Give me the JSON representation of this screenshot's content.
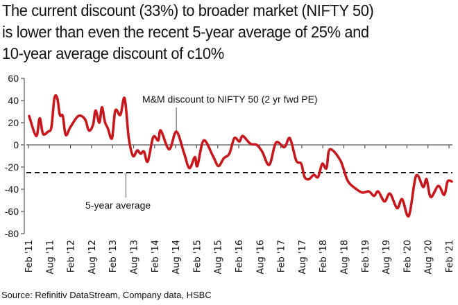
{
  "title_lines": [
    "The current discount (33%) to broader market (NIFTY 50)",
    "is lower than even the recent 5-year average of 25% and",
    "10-year average discount of c10%"
  ],
  "source": "Source: Refinitiv DataStream, Company data, HSBC",
  "colors": {
    "series": "#c8161d",
    "axis": "#555555",
    "text": "#111111"
  },
  "chart_data": {
    "type": "line",
    "title": "The current discount (33%) to broader market (NIFTY 50) is lower than even the recent 5-year average of 25% and 10-year average discount of c10%",
    "xlabel": "",
    "ylabel": "",
    "ylim": [
      -80,
      60
    ],
    "yticks": [
      60,
      40,
      20,
      0,
      -20,
      -40,
      -60,
      -80
    ],
    "ytick_labels": [
      "60",
      "40",
      "20",
      "0",
      "-20",
      "-40",
      "-60",
      "-80"
    ],
    "xtick_labels": [
      "Feb '11",
      "Aug '11",
      "Feb '12",
      "Aug '12",
      "Feb '13",
      "Aug '13",
      "Feb '14",
      "Aug '14",
      "Feb '15",
      "Aug '15",
      "Feb '16",
      "Aug '16",
      "Feb '17",
      "Aug '17",
      "Feb '18",
      "Aug '18",
      "Feb '19",
      "Aug '19",
      "Feb '20",
      "Aug '20",
      "Feb '21"
    ],
    "xlim_years": [
      2011.08,
      2021.2
    ],
    "grid": false,
    "series": [
      {
        "name": "M&M discount to NIFTY 50 (2 yr fwd PE)",
        "x_years": [
          2011.1,
          2011.27,
          2011.35,
          2011.43,
          2011.55,
          2011.63,
          2011.7,
          2011.77,
          2011.83,
          2011.9,
          2011.97,
          2012.08,
          2012.27,
          2012.43,
          2012.52,
          2012.62,
          2012.68,
          2012.77,
          2012.83,
          2012.9,
          2012.97,
          2013.07,
          2013.15,
          2013.27,
          2013.37,
          2013.47,
          2013.57,
          2013.67,
          2013.75,
          2013.83,
          2013.92,
          2014.05,
          2014.17,
          2014.23,
          2014.43,
          2014.6,
          2014.78,
          2014.91,
          2015.04,
          2015.1,
          2015.25,
          2015.47,
          2015.6,
          2015.73,
          2015.86,
          2015.98,
          2016.1,
          2016.18,
          2016.36,
          2016.51,
          2016.64,
          2016.81,
          2016.97,
          2017.17,
          2017.3,
          2017.45,
          2017.57,
          2017.65,
          2017.75,
          2017.87,
          2017.97,
          2018.07,
          2018.17,
          2018.25,
          2018.5,
          2018.67,
          2018.85,
          2019.02,
          2019.18,
          2019.3,
          2019.4,
          2019.55,
          2019.68,
          2019.85,
          2019.97,
          2020.13,
          2020.3,
          2020.47,
          2020.55,
          2020.65,
          2020.83,
          2020.97,
          2021.05,
          2021.15
        ],
        "values": [
          26,
          8,
          24,
          10,
          12,
          16,
          42,
          42,
          27,
          26,
          9,
          16,
          26,
          23,
          13,
          18,
          31,
          20,
          34,
          21,
          15,
          6,
          31,
          27,
          42,
          6,
          -10,
          -5,
          -8,
          -6,
          -15,
          7,
          4,
          13,
          -4,
          12,
          -7,
          -21,
          -11,
          -19,
          4,
          -10,
          -19,
          -12,
          -8,
          6,
          3,
          8,
          1,
          0,
          -6,
          -18,
          2,
          -2,
          6,
          -14,
          -17,
          -29,
          -31,
          -27,
          -29,
          -17,
          -21,
          -4,
          -14,
          -32,
          -39,
          -43,
          -42,
          -46,
          -42,
          -51,
          -44,
          -57,
          -49,
          -64,
          -28,
          -38,
          -31,
          -47,
          -37,
          -45,
          -33,
          -33
        ]
      }
    ],
    "reference_lines": [
      {
        "name": "5-year average",
        "value": -25,
        "style": "dashed"
      }
    ],
    "annotations": [
      {
        "text": "M&M discount to NIFTY 50 (2 yr fwd PE)",
        "points_to_year": 2014.6
      },
      {
        "text": "5-year average",
        "points_to_year": 2013.4
      }
    ]
  }
}
